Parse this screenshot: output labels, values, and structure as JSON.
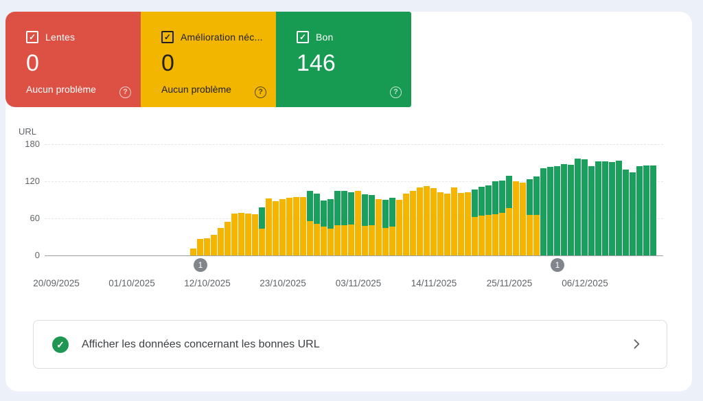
{
  "colors": {
    "page_bg": "#ECF1F9",
    "panel_bg": "#FFFFFF",
    "card_red": "#DD5144",
    "card_yellow": "#F2B600",
    "card_green": "#179B52",
    "bar_yellow": "#F5B400",
    "bar_green": "#1AA05C",
    "footer_check_green": "#1E9752",
    "marker_gray": "#80868B"
  },
  "cards": [
    {
      "label": "Lentes",
      "count": "0",
      "status": "Aucun problème",
      "bg": "#DD5144",
      "fg": "#FFFFFF"
    },
    {
      "label": "Amélioration néc...",
      "count": "0",
      "status": "Aucun problème",
      "bg": "#F2B600",
      "fg": "#212121"
    },
    {
      "label": "Bon",
      "count": "146",
      "status": "",
      "bg": "#179B52",
      "fg": "#FFFFFF"
    }
  ],
  "checkbox_glyph": "✓",
  "help_glyph": "?",
  "chart_data": {
    "type": "bar",
    "stacked": true,
    "ylabel": "URL",
    "ylim": [
      0,
      180
    ],
    "yticks": [
      0,
      60,
      120,
      180
    ],
    "x_tick_labels": [
      "20/09/2025",
      "01/10/2025",
      "12/10/2025",
      "23/10/2025",
      "03/11/2025",
      "14/11/2025",
      "25/11/2025",
      "06/12/2025"
    ],
    "grid": true,
    "legend": "none",
    "series": [
      {
        "name": "Amélioration nécessaire",
        "color": "#F5B400",
        "values": [
          11,
          27,
          28,
          33,
          45,
          54,
          68,
          69,
          68,
          67,
          43,
          92,
          88,
          91,
          93,
          95,
          94,
          56,
          51,
          47,
          43,
          49,
          49,
          50,
          104,
          48,
          49,
          91,
          44,
          47,
          90,
          100,
          105,
          110,
          112,
          109,
          102,
          100,
          110,
          101,
          102,
          62,
          64,
          66,
          67,
          69,
          77,
          120,
          118,
          66,
          66,
          0,
          0,
          0,
          0,
          0,
          0,
          0,
          0,
          0,
          0,
          0,
          0,
          0,
          0,
          0,
          0,
          0
        ]
      },
      {
        "name": "Bon",
        "color": "#1AA05C",
        "values": [
          0,
          0,
          0,
          0,
          0,
          0,
          0,
          0,
          0,
          0,
          35,
          0,
          0,
          0,
          0,
          0,
          0,
          49,
          49,
          42,
          48,
          55,
          56,
          52,
          0,
          51,
          49,
          0,
          46,
          46,
          0,
          0,
          0,
          0,
          0,
          0,
          0,
          0,
          0,
          0,
          0,
          45,
          47,
          47,
          53,
          52,
          52,
          0,
          0,
          57,
          62,
          141,
          143,
          145,
          148,
          147,
          157,
          156,
          144,
          152,
          152,
          151,
          153,
          139,
          135,
          144,
          146,
          146
        ]
      }
    ],
    "annotations": [
      {
        "label": "1",
        "bar_index": 2
      },
      {
        "label": "1",
        "bar_index": 54
      }
    ]
  },
  "footer": {
    "text": "Afficher les données concernant les bonnes URL",
    "check_glyph": "✓"
  }
}
